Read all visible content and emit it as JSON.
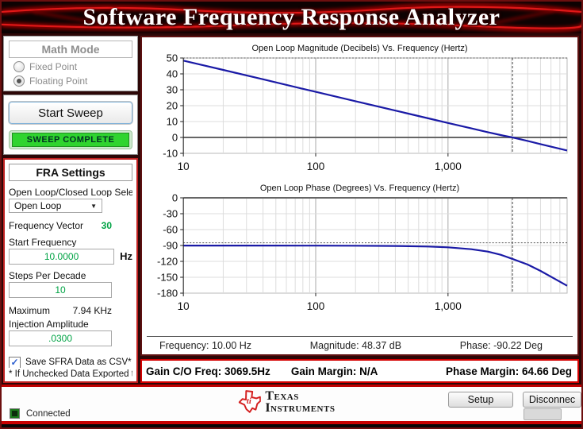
{
  "banner": {
    "title": "Software Frequency Response Analyzer"
  },
  "colors": {
    "accent_red": "#cc0000",
    "value_green": "#00a344",
    "curve_blue": "#1a1aa6",
    "sweep_complete_green": "#2fd42f"
  },
  "sidebar": {
    "math_mode": {
      "title": "Math Mode",
      "options": [
        {
          "label": "Fixed Point",
          "selected": false
        },
        {
          "label": "Floating Point",
          "selected": true
        }
      ]
    },
    "sweep": {
      "start_button": "Start Sweep",
      "status": "SWEEP COMPLETE"
    },
    "fra": {
      "title": "FRA Settings",
      "loop_select_label": "Open Loop/Closed Loop Sele",
      "loop_select_value": "Open Loop",
      "frequency_vector_label": "Frequency Vector",
      "frequency_vector_value": "30",
      "start_frequency_label": "Start Frequency",
      "start_frequency_value": "10.0000",
      "start_frequency_unit": "Hz",
      "steps_per_decade_label": "Steps Per Decade",
      "steps_per_decade_value": "10",
      "maximum_label": "Maximum",
      "maximum_value": "7.94 KHz",
      "injection_amplitude_label": "Injection Amplitude",
      "injection_amplitude_value": ".0300",
      "save_csv_label": "Save SFRA Data as CSV*",
      "save_csv_checked": true,
      "csv_note": "* If Unchecked Data Exported to"
    }
  },
  "readout": {
    "frequency": "Frequency: 10.00 Hz",
    "magnitude": "Magnitude: 48.37 dB",
    "phase": "Phase: -90.22 Deg"
  },
  "margins_bar": {
    "gain_co_freq": "Gain C/O Freq: 3069.5Hz",
    "gain_margin": "Gain Margin: N/A",
    "phase_margin": "Phase Margin: 64.66 Deg"
  },
  "footer": {
    "logo_line1": "Texas",
    "logo_line2": "Instruments",
    "setup_button": "Setup",
    "disconnect_button": "Disconnec",
    "connected_label": "Connected"
  },
  "chart_data": [
    {
      "type": "line",
      "title": "Open Loop Magnitude (Decibels) Vs. Frequency (Hertz)",
      "x_scale": "log",
      "xlim": [
        10,
        7943
      ],
      "ylim": [
        -10,
        50
      ],
      "yticks": [
        50,
        40,
        30,
        20,
        10,
        0,
        -10
      ],
      "xticks": [
        {
          "value": 10,
          "label": "10"
        },
        {
          "value": 100,
          "label": "100"
        },
        {
          "value": 1000,
          "label": "1,000"
        }
      ],
      "zero_line": 0,
      "dotted_y": 50,
      "cursor_x": 3069.5,
      "line_color": "#1a1aa6",
      "points": [
        [
          10,
          48.37
        ],
        [
          20,
          42.5
        ],
        [
          40,
          36.6
        ],
        [
          80,
          30.6
        ],
        [
          100,
          28.7
        ],
        [
          200,
          22.8
        ],
        [
          400,
          16.9
        ],
        [
          800,
          11.0
        ],
        [
          1000,
          9.1
        ],
        [
          1500,
          5.7
        ],
        [
          2000,
          3.3
        ],
        [
          2500,
          1.5
        ],
        [
          3069.5,
          0.0
        ],
        [
          4000,
          -2.2
        ],
        [
          5000,
          -4.2
        ],
        [
          6300,
          -6.2
        ],
        [
          7943,
          -8.2
        ]
      ]
    },
    {
      "type": "line",
      "title": "Open Loop Phase (Degrees) Vs. Frequency (Hertz)",
      "x_scale": "log",
      "xlim": [
        10,
        7943
      ],
      "ylim": [
        -180,
        0
      ],
      "yticks": [
        0,
        -30,
        -60,
        -90,
        -120,
        -150,
        -180
      ],
      "zero_line": 0,
      "dotted_y": -85,
      "cursor_x": 3069.5,
      "line_color": "#1a1aa6",
      "xticks": [
        {
          "value": 10,
          "label": "10"
        },
        {
          "value": 100,
          "label": "100"
        },
        {
          "value": 1000,
          "label": "1,000"
        }
      ],
      "points": [
        [
          10,
          -90.22
        ],
        [
          50,
          -90.2
        ],
        [
          100,
          -90.3
        ],
        [
          200,
          -90.4
        ],
        [
          400,
          -90.9
        ],
        [
          700,
          -92.0
        ],
        [
          1000,
          -93.5
        ],
        [
          1500,
          -97.0
        ],
        [
          2000,
          -101.5
        ],
        [
          2500,
          -107.5
        ],
        [
          3069.5,
          -115.3
        ],
        [
          4000,
          -126.0
        ],
        [
          5000,
          -138.0
        ],
        [
          6300,
          -152.0
        ],
        [
          7943,
          -166.0
        ]
      ]
    }
  ]
}
